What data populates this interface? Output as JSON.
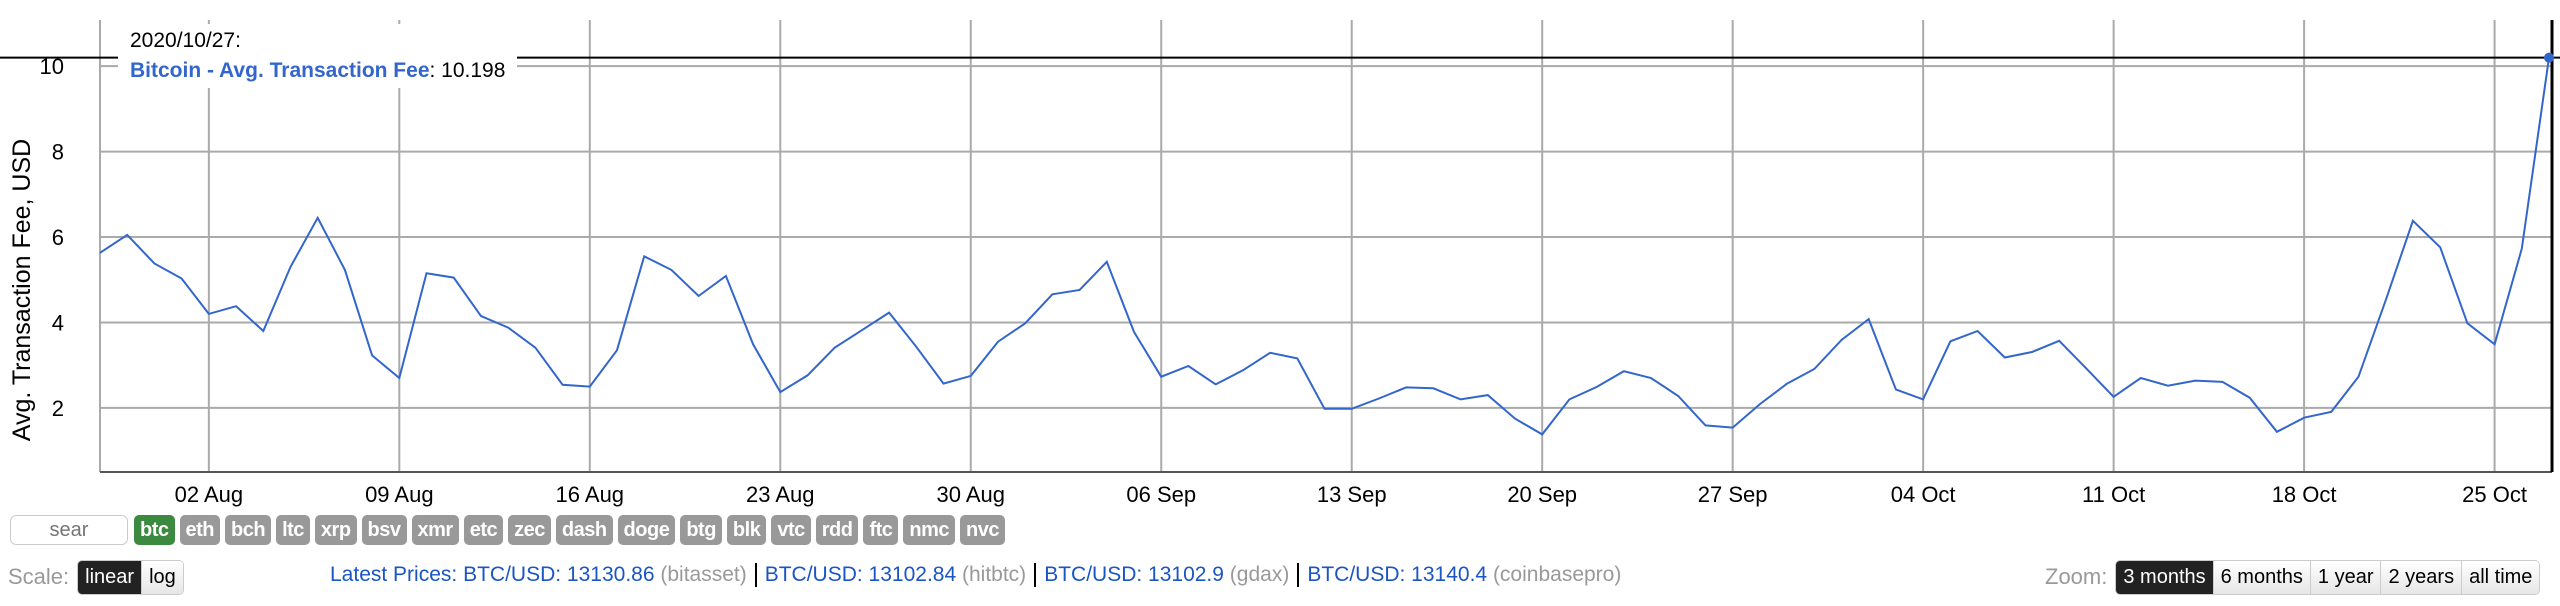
{
  "chart_data": {
    "type": "line",
    "ylabel": "Avg. Transaction Fee, USD",
    "ylim": [
      0.5,
      11.08
    ],
    "yticks": [
      2,
      4,
      6,
      8,
      10
    ],
    "xlim": [
      "2020-07-29",
      "2020-10-27"
    ],
    "xticks": [
      "02 Aug",
      "09 Aug",
      "16 Aug",
      "23 Aug",
      "30 Aug",
      "06 Sep",
      "13 Sep",
      "20 Sep",
      "27 Sep",
      "04 Oct",
      "11 Oct",
      "18 Oct",
      "25 Oct"
    ],
    "xtick_dates": [
      "2020-08-02",
      "2020-08-09",
      "2020-08-16",
      "2020-08-23",
      "2020-08-30",
      "2020-09-06",
      "2020-09-13",
      "2020-09-20",
      "2020-09-27",
      "2020-10-04",
      "2020-10-11",
      "2020-10-18",
      "2020-10-25"
    ],
    "grid": true,
    "line_color": "#3366cc",
    "series": [
      {
        "name": "Bitcoin - Avg. Transaction Fee",
        "start_date": "2020-07-29",
        "interval": "daily",
        "values": [
          5.63,
          6.05,
          5.38,
          5.03,
          4.2,
          4.38,
          3.8,
          5.3,
          6.45,
          5.23,
          3.23,
          2.7,
          5.15,
          5.05,
          4.15,
          3.88,
          3.41,
          2.54,
          2.5,
          3.35,
          5.55,
          5.23,
          4.62,
          5.09,
          3.49,
          2.37,
          2.76,
          3.41,
          3.82,
          4.23,
          3.43,
          2.57,
          2.75,
          3.55,
          3.98,
          4.66,
          4.76,
          5.42,
          3.78,
          2.73,
          2.98,
          2.55,
          2.88,
          3.29,
          3.16,
          1.98,
          1.98,
          2.22,
          2.48,
          2.46,
          2.2,
          2.3,
          1.75,
          1.38,
          2.2,
          2.49,
          2.86,
          2.7,
          2.28,
          1.59,
          1.54,
          2.09,
          2.57,
          2.91,
          3.59,
          4.08,
          2.43,
          2.2,
          3.56,
          3.8,
          3.18,
          3.31,
          3.57,
          2.92,
          2.26,
          2.7,
          2.52,
          2.64,
          2.61,
          2.24,
          1.44,
          1.77,
          1.91,
          2.73,
          4.52,
          6.38,
          5.76,
          3.98,
          3.49,
          5.73,
          10.198
        ]
      }
    ],
    "tooltip": {
      "date": "2020/10/27:",
      "series": "Bitcoin - Avg. Transaction Fee",
      "value": "10.198"
    }
  },
  "search": {
    "placeholder": "sear"
  },
  "coins": [
    {
      "label": "btc",
      "active": true
    },
    {
      "label": "eth"
    },
    {
      "label": "bch"
    },
    {
      "label": "ltc"
    },
    {
      "label": "xrp"
    },
    {
      "label": "bsv"
    },
    {
      "label": "xmr"
    },
    {
      "label": "etc"
    },
    {
      "label": "zec"
    },
    {
      "label": "dash"
    },
    {
      "label": "doge"
    },
    {
      "label": "btg"
    },
    {
      "label": "blk"
    },
    {
      "label": "vtc"
    },
    {
      "label": "rdd"
    },
    {
      "label": "ftc"
    },
    {
      "label": "nmc"
    },
    {
      "label": "nvc"
    }
  ],
  "scale": {
    "label": "Scale:",
    "options": [
      "linear",
      "log"
    ],
    "selected": "linear"
  },
  "prices": {
    "label": "Latest Prices:",
    "items": [
      {
        "pair": "BTC/USD: 13130.86",
        "source": "(bitasset)"
      },
      {
        "pair": "BTC/USD: 13102.84",
        "source": "(hitbtc)"
      },
      {
        "pair": "BTC/USD: 13102.9",
        "source": "(gdax)"
      },
      {
        "pair": "BTC/USD: 13140.4",
        "source": "(coinbasepro)"
      }
    ]
  },
  "zoom": {
    "label": "Zoom:",
    "options": [
      "3 months",
      "6 months",
      "1 year",
      "2 years",
      "all time"
    ],
    "selected": "3 months"
  },
  "colors": {
    "accent": "#3366cc",
    "active_coin": "#3c8a3f",
    "inactive_coin": "#999999",
    "link": "#1a55c4"
  }
}
